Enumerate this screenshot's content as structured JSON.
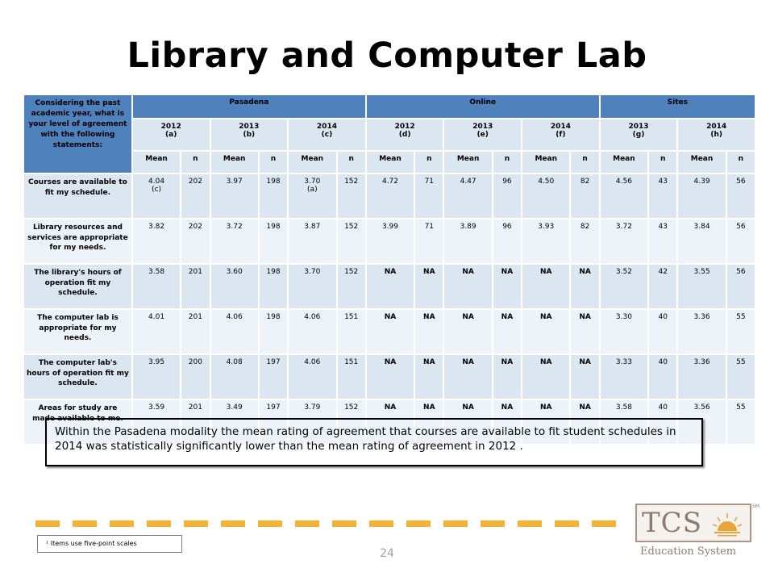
{
  "title": "Library and Computer Lab",
  "table": {
    "question_header": "Considering the past academic year, what is your level of agreement with the following statements:",
    "groups": [
      "Pasadena",
      "Online",
      "Sites"
    ],
    "years": [
      {
        "year": "2012",
        "letter": "(a)"
      },
      {
        "year": "2013",
        "letter": "(b)"
      },
      {
        "year": "2014",
        "letter": "(c)"
      },
      {
        "year": "2012",
        "letter": "(d)"
      },
      {
        "year": "2013",
        "letter": "(e)"
      },
      {
        "year": "2014",
        "letter": "(f)"
      },
      {
        "year": "2013",
        "letter": "(g)"
      },
      {
        "year": "2014",
        "letter": "(h)"
      }
    ],
    "mean_label": "Mean",
    "n_label": "n",
    "rows": [
      {
        "label": "Courses are available to fit my schedule.",
        "cells": [
          {
            "mean": "4.04",
            "note": "(c)",
            "n": "202"
          },
          {
            "mean": "3.97",
            "note": "",
            "n": "198"
          },
          {
            "mean": "3.70",
            "note": "(a)",
            "n": "152"
          },
          {
            "mean": "4.72",
            "note": "",
            "n": "71"
          },
          {
            "mean": "4.47",
            "note": "",
            "n": "96"
          },
          {
            "mean": "4.50",
            "note": "",
            "n": "82"
          },
          {
            "mean": "4.56",
            "note": "",
            "n": "43"
          },
          {
            "mean": "4.39",
            "note": "",
            "n": "56"
          }
        ]
      },
      {
        "label": "Library resources and services are appropriate for my needs.",
        "cells": [
          {
            "mean": "3.82",
            "note": "",
            "n": "202"
          },
          {
            "mean": "3.72",
            "note": "",
            "n": "198"
          },
          {
            "mean": "3.87",
            "note": "",
            "n": "152"
          },
          {
            "mean": "3.99",
            "note": "",
            "n": "71"
          },
          {
            "mean": "3.89",
            "note": "",
            "n": "96"
          },
          {
            "mean": "3.93",
            "note": "",
            "n": "82"
          },
          {
            "mean": "3.72",
            "note": "",
            "n": "43"
          },
          {
            "mean": "3.84",
            "note": "",
            "n": "56"
          }
        ]
      },
      {
        "label": "The library's hours of operation fit my schedule.",
        "cells": [
          {
            "mean": "3.58",
            "note": "",
            "n": "201"
          },
          {
            "mean": "3.60",
            "note": "",
            "n": "198"
          },
          {
            "mean": "3.70",
            "note": "",
            "n": "152"
          },
          {
            "mean": "NA",
            "note": "",
            "n": "NA"
          },
          {
            "mean": "NA",
            "note": "",
            "n": "NA"
          },
          {
            "mean": "NA",
            "note": "",
            "n": "NA"
          },
          {
            "mean": "3.52",
            "note": "",
            "n": "42"
          },
          {
            "mean": "3.55",
            "note": "",
            "n": "56"
          }
        ]
      },
      {
        "label": "The computer lab is appropriate for my needs.",
        "cells": [
          {
            "mean": "4.01",
            "note": "",
            "n": "201"
          },
          {
            "mean": "4.06",
            "note": "",
            "n": "198"
          },
          {
            "mean": "4.06",
            "note": "",
            "n": "151"
          },
          {
            "mean": "NA",
            "note": "",
            "n": "NA"
          },
          {
            "mean": "NA",
            "note": "",
            "n": "NA"
          },
          {
            "mean": "NA",
            "note": "",
            "n": "NA"
          },
          {
            "mean": "3.30",
            "note": "",
            "n": "40"
          },
          {
            "mean": "3.36",
            "note": "",
            "n": "55"
          }
        ]
      },
      {
        "label": "The computer lab's hours of operation fit my schedule.",
        "cells": [
          {
            "mean": "3.95",
            "note": "",
            "n": "200"
          },
          {
            "mean": "4.08",
            "note": "",
            "n": "197"
          },
          {
            "mean": "4.06",
            "note": "",
            "n": "151"
          },
          {
            "mean": "NA",
            "note": "",
            "n": "NA"
          },
          {
            "mean": "NA",
            "note": "",
            "n": "NA"
          },
          {
            "mean": "NA",
            "note": "",
            "n": "NA"
          },
          {
            "mean": "3.33",
            "note": "",
            "n": "40"
          },
          {
            "mean": "3.36",
            "note": "",
            "n": "55"
          }
        ]
      },
      {
        "label": "Areas for study are made available to me.",
        "cells": [
          {
            "mean": "3.59",
            "note": "",
            "n": "201"
          },
          {
            "mean": "3.49",
            "note": "",
            "n": "197"
          },
          {
            "mean": "3.79",
            "note": "",
            "n": "152"
          },
          {
            "mean": "NA",
            "note": "",
            "n": "NA"
          },
          {
            "mean": "NA",
            "note": "",
            "n": "NA"
          },
          {
            "mean": "NA",
            "note": "",
            "n": "NA"
          },
          {
            "mean": "3.58",
            "note": "",
            "n": "40"
          },
          {
            "mean": "3.56",
            "note": "",
            "n": "55"
          }
        ]
      }
    ]
  },
  "callout": "Within the Pasadena modality the mean rating of agreement that courses are available to fit student schedules in 2014 was statistically significantly lower than the mean rating of agreement in 2012 .",
  "footnote": "¹ Items use five-point scales",
  "page_number": "24",
  "logo": {
    "letters": "TCS",
    "subtitle": "Education System",
    "mark": "SM"
  },
  "colors": {
    "header_blue": "#4f81bd",
    "row_light": "#dce6f1",
    "row_lighter": "#eef3f9",
    "dash_gold": "#f2b233",
    "logo_brown": "#8c7b6e"
  }
}
